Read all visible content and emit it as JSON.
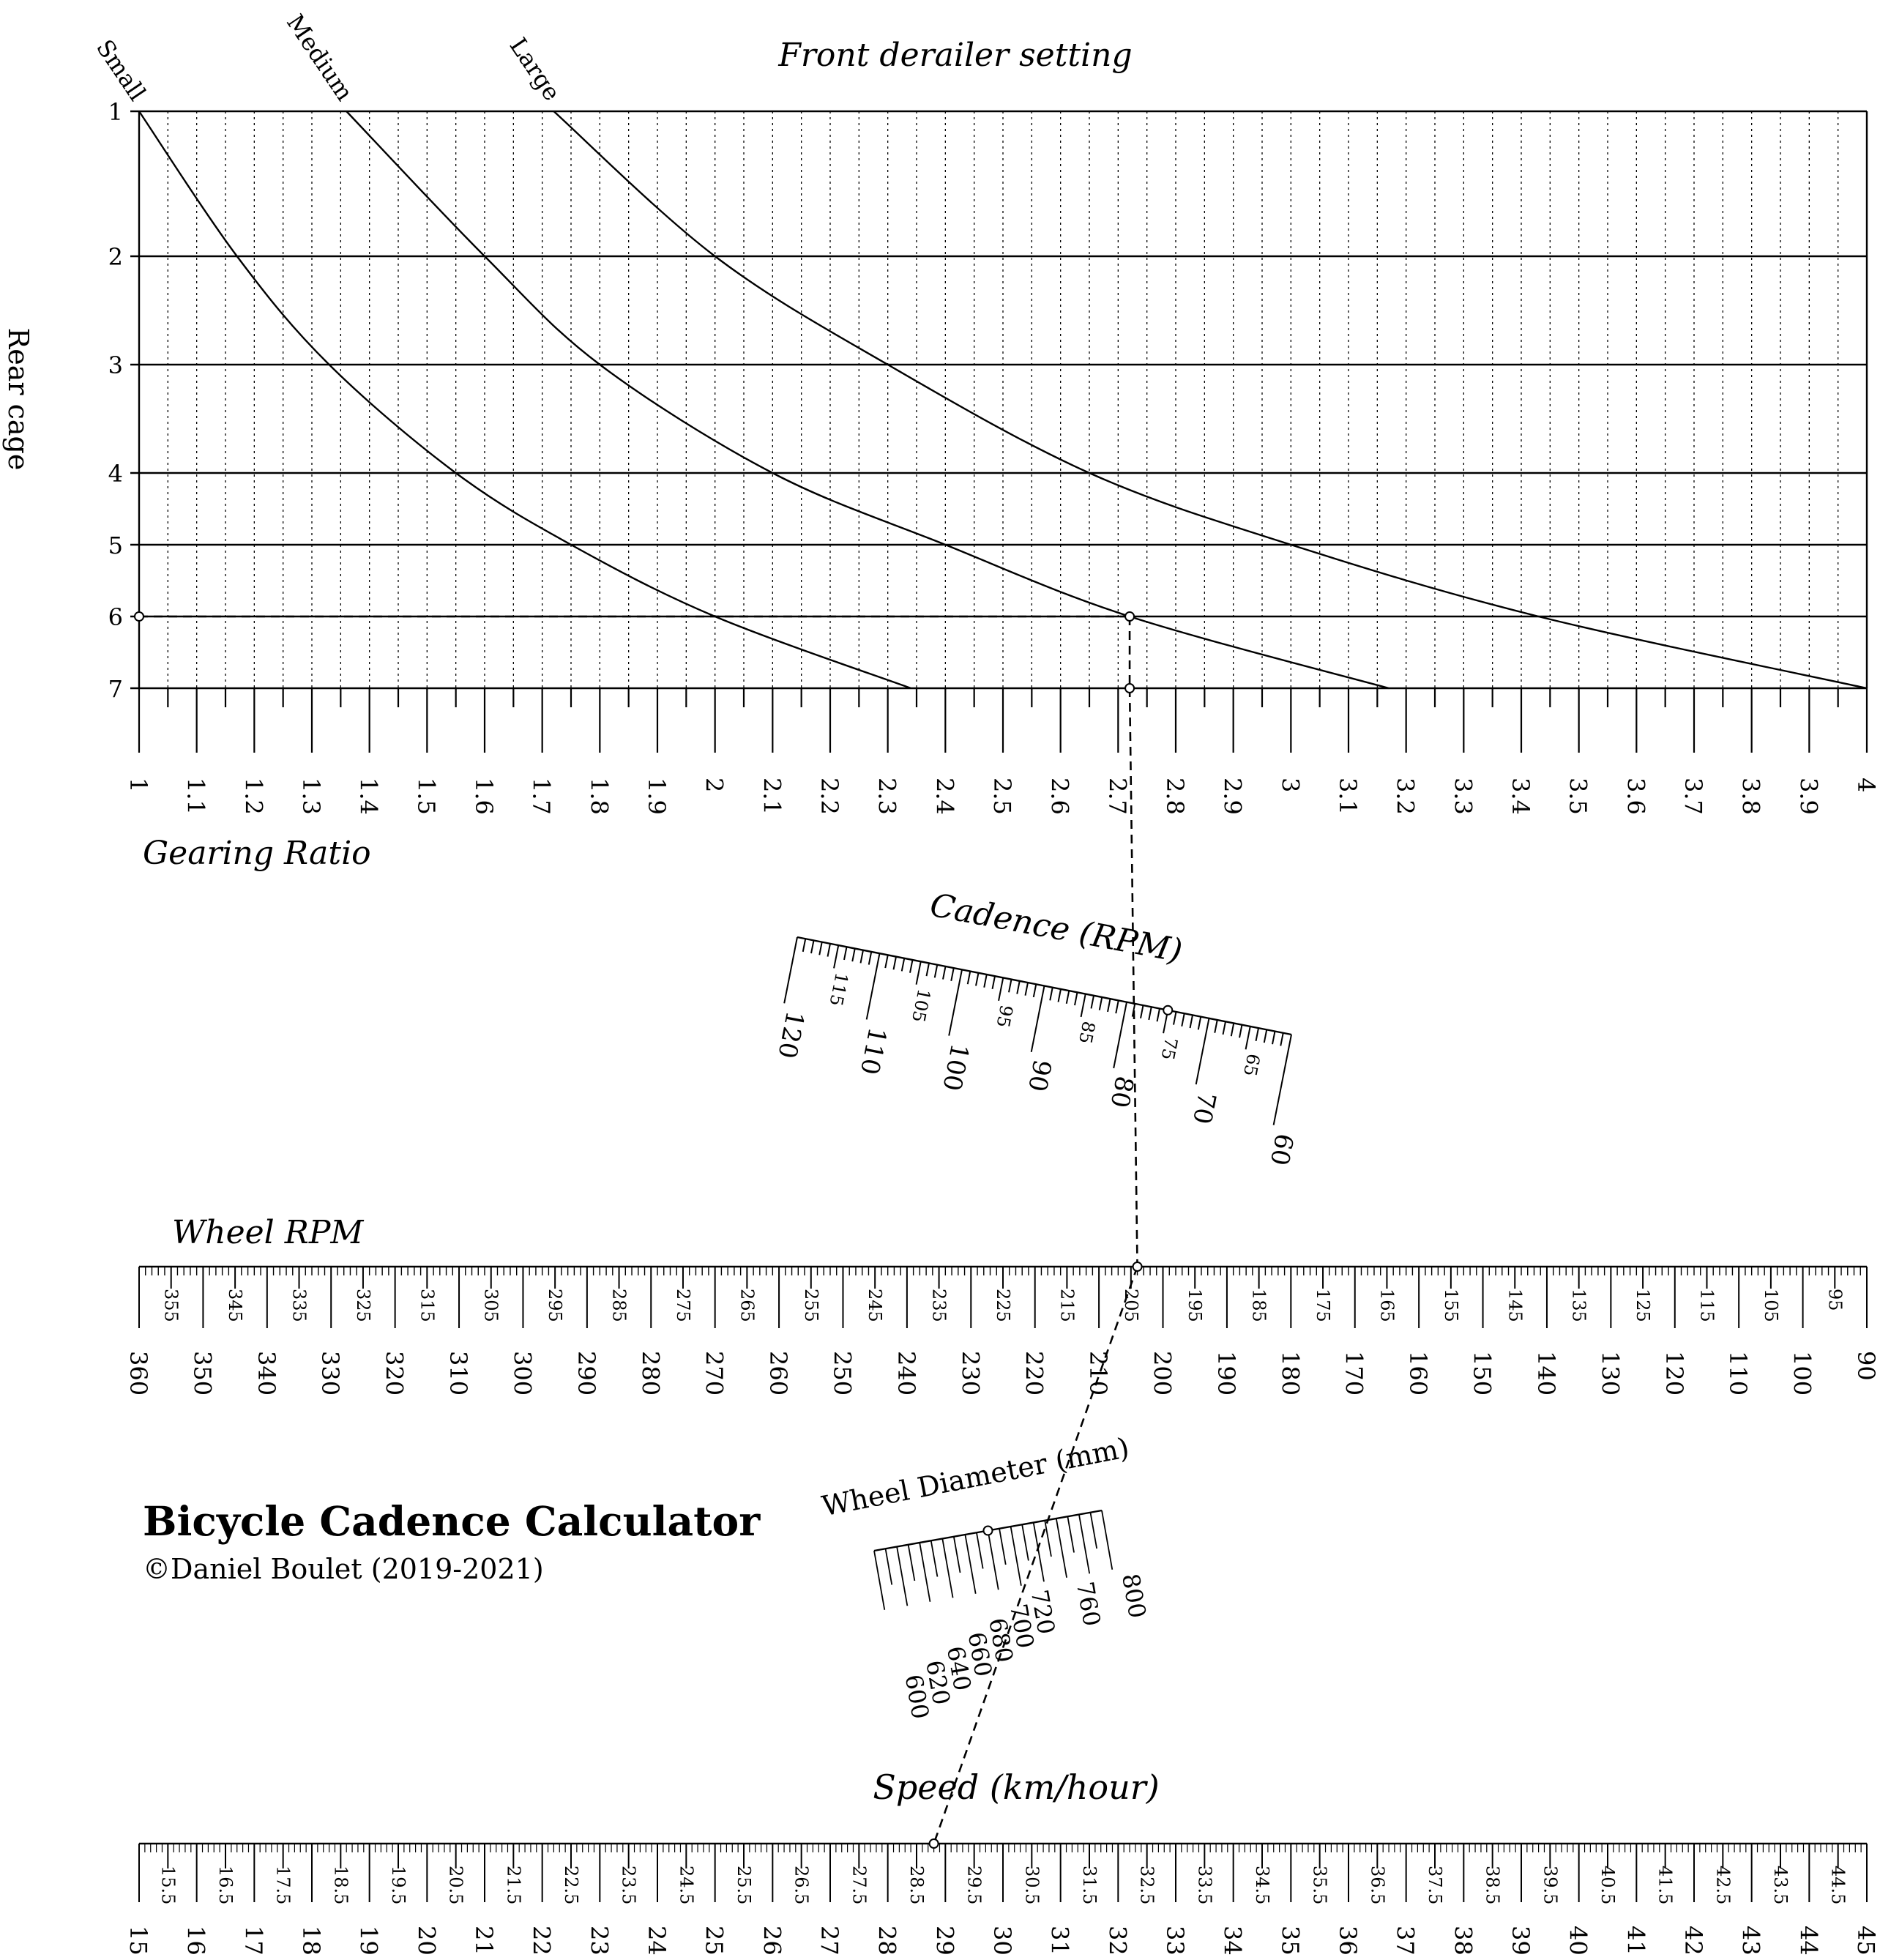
{
  "title": "Bicycle Cadence Calculator",
  "credit": "©Daniel Boulet (2019-2021)",
  "gear_chart": {
    "title": "Front derailer setting",
    "y_label": "Rear cage",
    "x_label": "Gearing Ratio",
    "front_labels": [
      "Small",
      "Medium",
      "Large"
    ],
    "rear_ticks": [
      "1",
      "2",
      "3",
      "4",
      "5",
      "6",
      "7"
    ],
    "ratio_range": [
      1,
      4
    ],
    "ratio_ticks": [
      "1",
      "1.1",
      "1.2",
      "1.3",
      "1.4",
      "1.5",
      "1.6",
      "1.7",
      "1.8",
      "1.9",
      "2",
      "2.1",
      "2.2",
      "2.3",
      "2.4",
      "2.5",
      "2.6",
      "2.7",
      "2.8",
      "2.9",
      "3",
      "3.1",
      "3.2",
      "3.3",
      "3.4",
      "3.5",
      "3.6",
      "3.7",
      "3.8",
      "3.9",
      "4"
    ],
    "curves": [
      {
        "name": "Small",
        "points": [
          [
            1,
            1
          ],
          [
            1.17,
            2
          ],
          [
            1.33,
            3
          ],
          [
            1.55,
            4
          ],
          [
            1.75,
            5
          ],
          [
            2.0,
            6
          ],
          [
            2.34,
            7
          ]
        ]
      },
      {
        "name": "Medium",
        "points": [
          [
            1.36,
            1
          ],
          [
            1.6,
            2
          ],
          [
            1.8,
            3
          ],
          [
            2.1,
            4
          ],
          [
            2.4,
            5
          ],
          [
            2.72,
            6
          ],
          [
            3.17,
            7
          ]
        ]
      },
      {
        "name": "Large",
        "points": [
          [
            1.72,
            1
          ],
          [
            2.0,
            2
          ],
          [
            2.3,
            3
          ],
          [
            2.65,
            4
          ],
          [
            3.0,
            5
          ],
          [
            3.43,
            6
          ],
          [
            4.0,
            7
          ]
        ]
      }
    ]
  },
  "cadence": {
    "title": "Cadence (RPM)",
    "range": [
      60,
      120
    ],
    "major_ticks": [
      "120",
      "110",
      "100",
      "90",
      "80",
      "70",
      "60"
    ],
    "minor_labels": [
      "115",
      "105",
      "95",
      "85",
      "75",
      "65"
    ]
  },
  "wheel_rpm": {
    "title": "Wheel RPM",
    "range": [
      360,
      90
    ],
    "major_ticks": [
      "360",
      "350",
      "340",
      "330",
      "320",
      "310",
      "300",
      "290",
      "280",
      "270",
      "260",
      "250",
      "240",
      "230",
      "220",
      "210",
      "200",
      "190",
      "180",
      "170",
      "160",
      "150",
      "140",
      "130",
      "120",
      "110",
      "100",
      "90"
    ],
    "minor_labels": [
      "355",
      "345",
      "335",
      "325",
      "315",
      "305",
      "295",
      "285",
      "275",
      "265",
      "255",
      "245",
      "235",
      "225",
      "215",
      "205",
      "195",
      "185",
      "175",
      "165",
      "155",
      "145",
      "135",
      "125",
      "115",
      "105",
      "95"
    ]
  },
  "wheel_diameter": {
    "title": "Wheel Diameter (mm)",
    "range": [
      600,
      800
    ],
    "ticks": [
      "600",
      "620",
      "640",
      "660",
      "680",
      "700",
      "720",
      "760",
      "800"
    ]
  },
  "speed": {
    "title": "Speed (km/hour)",
    "range": [
      15,
      45
    ],
    "major_ticks": [
      "15",
      "16",
      "17",
      "18",
      "19",
      "20",
      "21",
      "22",
      "23",
      "24",
      "25",
      "26",
      "27",
      "28",
      "29",
      "30",
      "31",
      "32",
      "33",
      "34",
      "35",
      "36",
      "37",
      "38",
      "39",
      "40",
      "41",
      "42",
      "43",
      "44",
      "45"
    ],
    "minor_labels": [
      "15.5",
      "16.5",
      "17.5",
      "18.5",
      "19.5",
      "20.5",
      "21.5",
      "22.5",
      "23.5",
      "24.5",
      "25.5",
      "26.5",
      "27.5",
      "28.5",
      "29.5",
      "30.5",
      "31.5",
      "32.5",
      "33.5",
      "34.5",
      "35.5",
      "36.5",
      "37.5",
      "38.5",
      "39.5",
      "40.5",
      "41.5",
      "42.5",
      "43.5",
      "44.5"
    ]
  },
  "example": {
    "rear_cage": 6,
    "front": "Medium",
    "gear_ratio": 2.72,
    "cadence": 75,
    "wheel_rpm": 204,
    "wheel_diameter": 700,
    "speed": 28.8
  }
}
